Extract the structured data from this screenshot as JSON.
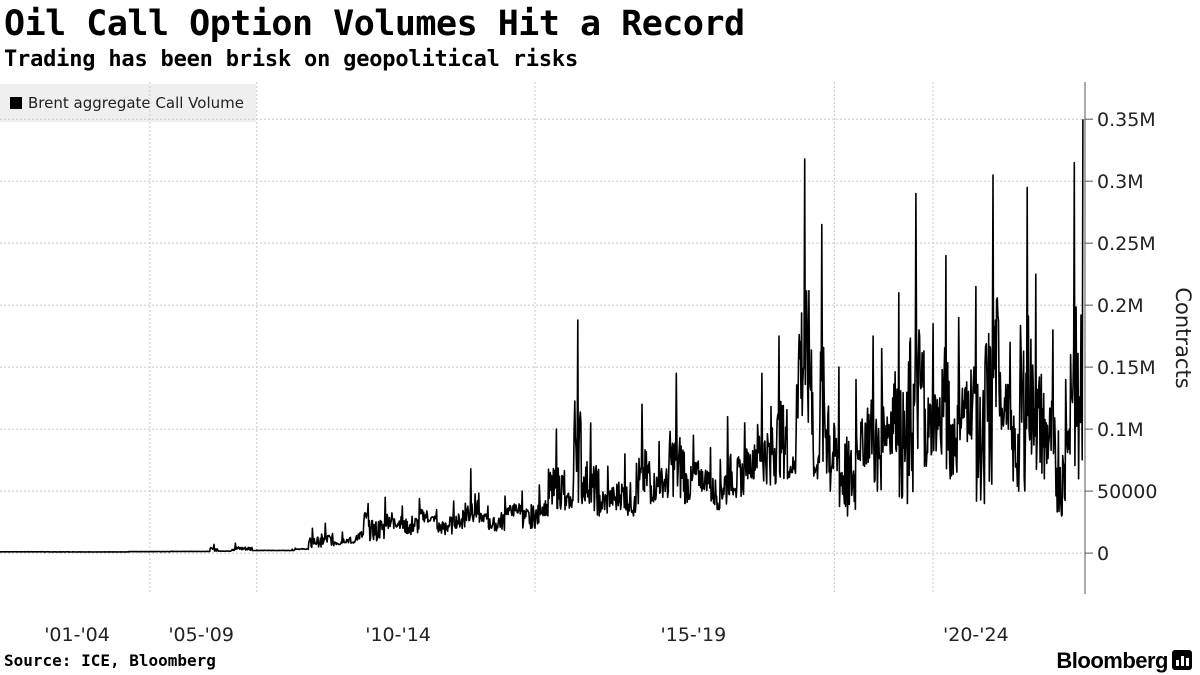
{
  "header": {
    "title": "Oil Call Option Volumes Hit a Record",
    "subtitle": "Trading has been brisk on geopolitical risks"
  },
  "legend": {
    "label": "Brent aggregate Call Volume",
    "color": "#000000"
  },
  "footer": {
    "source": "Source: ICE, Bloomberg",
    "brand": "Bloomberg",
    "brand_icon": "bloomberg-terminal-icon"
  },
  "chart_data": {
    "type": "line",
    "title": "Oil Call Option Volumes Hit a Record",
    "subtitle": "Trading has been brisk on geopolitical risks",
    "ylabel": "Contracts",
    "ylim": [
      -33000,
      380000
    ],
    "xlim": [
      2000.0,
      2025.35
    ],
    "grid": true,
    "legend_position": "top-left",
    "y_ticks": [
      {
        "value": 0,
        "label": "0"
      },
      {
        "value": 50000,
        "label": "50000"
      },
      {
        "value": 100000,
        "label": "0.1M"
      },
      {
        "value": 150000,
        "label": "0.15M"
      },
      {
        "value": 200000,
        "label": "0.2M"
      },
      {
        "value": 250000,
        "label": "0.25M"
      },
      {
        "value": 300000,
        "label": "0.3M"
      },
      {
        "value": 350000,
        "label": "0.35M"
      }
    ],
    "x_gridlines": [
      2003.5,
      2006.0,
      2012.5,
      2019.5,
      2021.8
    ],
    "x_tick_labels": [
      {
        "value": 2001.8,
        "label": "'01-'04"
      },
      {
        "value": 2004.7,
        "label": "'05-'09"
      },
      {
        "value": 2009.3,
        "label": "'10-'14"
      },
      {
        "value": 2016.2,
        "label": "'15-'19"
      },
      {
        "value": 2022.8,
        "label": "'20-'24"
      }
    ],
    "series": [
      {
        "name": "Brent aggregate Call Volume",
        "color": "#000000",
        "x": [
          2000.0,
          2001.0,
          2002.0,
          2003.0,
          2004.0,
          2004.9,
          2005.0,
          2005.1,
          2005.4,
          2005.5,
          2005.9,
          2006.0,
          2006.8,
          2006.9,
          2007.2,
          2007.3,
          2007.5,
          2007.6,
          2007.8,
          2008.0,
          2008.2,
          2008.3,
          2008.5,
          2008.6,
          2008.8,
          2009.0,
          2009.2,
          2009.4,
          2009.6,
          2009.8,
          2010.0,
          2010.2,
          2010.4,
          2010.6,
          2010.8,
          2011.0,
          2011.2,
          2011.4,
          2011.6,
          2011.8,
          2012.0,
          2012.2,
          2012.4,
          2012.6,
          2012.8,
          2013.0,
          2013.2,
          2013.4,
          2013.5,
          2013.6,
          2013.8,
          2014.0,
          2014.2,
          2014.4,
          2014.6,
          2014.8,
          2015.0,
          2015.2,
          2015.4,
          2015.6,
          2015.8,
          2016.0,
          2016.2,
          2016.4,
          2016.6,
          2016.8,
          2017.0,
          2017.2,
          2017.4,
          2017.6,
          2017.8,
          2018.0,
          2018.2,
          2018.4,
          2018.6,
          2018.8,
          2019.0,
          2019.1,
          2019.2,
          2019.4,
          2019.6,
          2019.8,
          2020.0,
          2020.2,
          2020.4,
          2020.5,
          2020.6,
          2020.8,
          2021.0,
          2021.2,
          2021.4,
          2021.6,
          2021.8,
          2022.0,
          2022.1,
          2022.2,
          2022.4,
          2022.6,
          2022.8,
          2023.0,
          2023.2,
          2023.4,
          2023.6,
          2023.8,
          2024.0,
          2024.1,
          2024.2,
          2024.4,
          2024.6,
          2024.8,
          2024.9,
          2025.0,
          2025.1,
          2025.2,
          2025.3
        ],
        "y": [
          1000,
          1200,
          900,
          1100,
          1500,
          1300,
          7000,
          1500,
          1800,
          8000,
          2000,
          2500,
          2000,
          4000,
          3000,
          20000,
          5000,
          24000,
          6000,
          17000,
          8000,
          10000,
          25000,
          40000,
          10000,
          45000,
          20000,
          38000,
          15000,
          44000,
          25000,
          35000,
          15000,
          42000,
          20000,
          68000,
          25000,
          38000,
          18000,
          46000,
          30000,
          50000,
          20000,
          55000,
          30000,
          100000,
          35000,
          60000,
          188000,
          40000,
          105000,
          30000,
          70000,
          35000,
          80000,
          30000,
          120000,
          40000,
          90000,
          45000,
          145000,
          40000,
          95000,
          50000,
          85000,
          35000,
          110000,
          45000,
          105000,
          60000,
          145000,
          55000,
          175000,
          60000,
          95000,
          318000,
          85000,
          60000,
          265000,
          50000,
          150000,
          30000,
          140000,
          70000,
          175000,
          50000,
          165000,
          80000,
          210000,
          40000,
          290000,
          70000,
          185000,
          80000,
          240000,
          60000,
          190000,
          90000,
          215000,
          40000,
          305000,
          100000,
          170000,
          50000,
          295000,
          80000,
          225000,
          60000,
          180000,
          30000,
          140000,
          80000,
          315000,
          60000,
          350000
        ]
      }
    ]
  }
}
